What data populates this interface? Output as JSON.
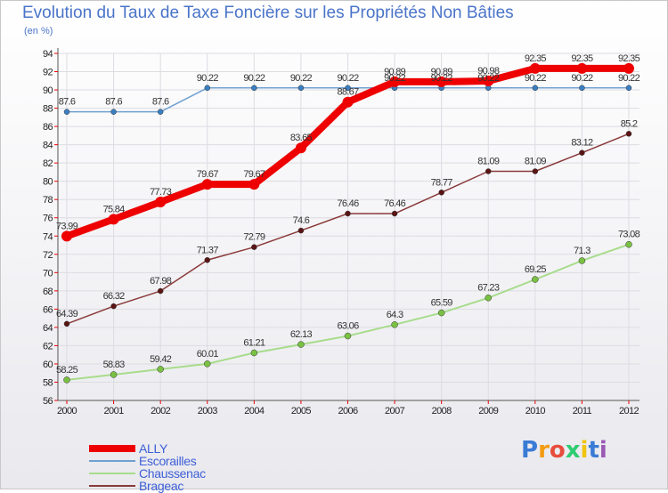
{
  "title": "Evolution du Taux de Taxe Foncière sur les Propriétés Non Bâties",
  "subtitle": "(en %)",
  "logo": {
    "text": "Proxiti",
    "letter_colors": [
      "#3a7bd5",
      "#f39c12",
      "#e74c3c",
      "#2ecc71",
      "#f1c40f",
      "#3a7bd5",
      "#9b59b6"
    ]
  },
  "chart_data": {
    "type": "line",
    "categories": [
      "2000",
      "2001",
      "2002",
      "2003",
      "2004",
      "2005",
      "2006",
      "2007",
      "2008",
      "2009",
      "2010",
      "2011",
      "2012"
    ],
    "ylim": [
      56,
      94
    ],
    "yticks": [
      56,
      58,
      60,
      62,
      64,
      66,
      68,
      70,
      72,
      74,
      76,
      78,
      80,
      82,
      84,
      86,
      88,
      90,
      92,
      94
    ],
    "grid": true,
    "legend_position": "bottom-left",
    "series": [
      {
        "name": "Escorailles",
        "color": "#6fa0d0",
        "marker": "#3a7fc1",
        "width": 1.5,
        "marker_r": 3,
        "values": [
          87.6,
          87.6,
          87.6,
          90.22,
          90.22,
          90.22,
          90.22,
          90.22,
          90.22,
          90.22,
          90.22,
          90.22,
          90.22
        ],
        "labels": [
          "87.6",
          "87.6",
          "87.6",
          "90.22",
          "90.22",
          "90.22",
          "90.22",
          "90.22",
          "90.22",
          "90.22",
          "90.22",
          "90.22",
          "90.22"
        ]
      },
      {
        "name": "Chaussenac",
        "color": "#a8dc8c",
        "marker": "#7ac143",
        "width": 2,
        "marker_r": 3.5,
        "values": [
          58.25,
          58.83,
          59.42,
          60.01,
          61.21,
          62.13,
          63.06,
          64.3,
          65.59,
          67.23,
          69.25,
          71.3,
          73.08
        ],
        "labels": [
          "58.25",
          "58.83",
          "59.42",
          "60.01",
          "61.21",
          "62.13",
          "63.06",
          "64.3",
          "65.59",
          "67.23",
          "69.25",
          "71.3",
          "73.08"
        ]
      },
      {
        "name": "Brageac",
        "color": "#8a3a3a",
        "marker": "#5a1414",
        "width": 1.5,
        "marker_r": 3,
        "values": [
          64.39,
          66.32,
          67.98,
          71.37,
          72.79,
          74.6,
          76.46,
          76.46,
          78.77,
          81.09,
          81.09,
          83.12,
          85.2
        ],
        "labels": [
          "64.39",
          "66.32",
          "67.98",
          "71.37",
          "72.79",
          "74.6",
          "76.46",
          "76.46",
          "78.77",
          "81.09",
          "81.09",
          "83.12",
          "85.2"
        ]
      },
      {
        "name": "ALLY",
        "color": "#ee0000",
        "marker": "#ee0000",
        "width": 8,
        "marker_r": 6,
        "values": [
          73.99,
          75.84,
          77.73,
          79.67,
          79.67,
          83.65,
          88.67,
          90.89,
          90.89,
          90.98,
          92.35,
          92.35,
          92.35
        ],
        "labels": [
          "73.99",
          "75.84",
          "77.73",
          "79.67",
          "79.67",
          "83.65",
          "88.67",
          "90.89",
          "90.89",
          "90.98",
          "92.35",
          "92.35",
          "92.35"
        ]
      }
    ],
    "legend_order": [
      "ALLY",
      "Escorailles",
      "Chaussenac",
      "Brageac"
    ]
  }
}
